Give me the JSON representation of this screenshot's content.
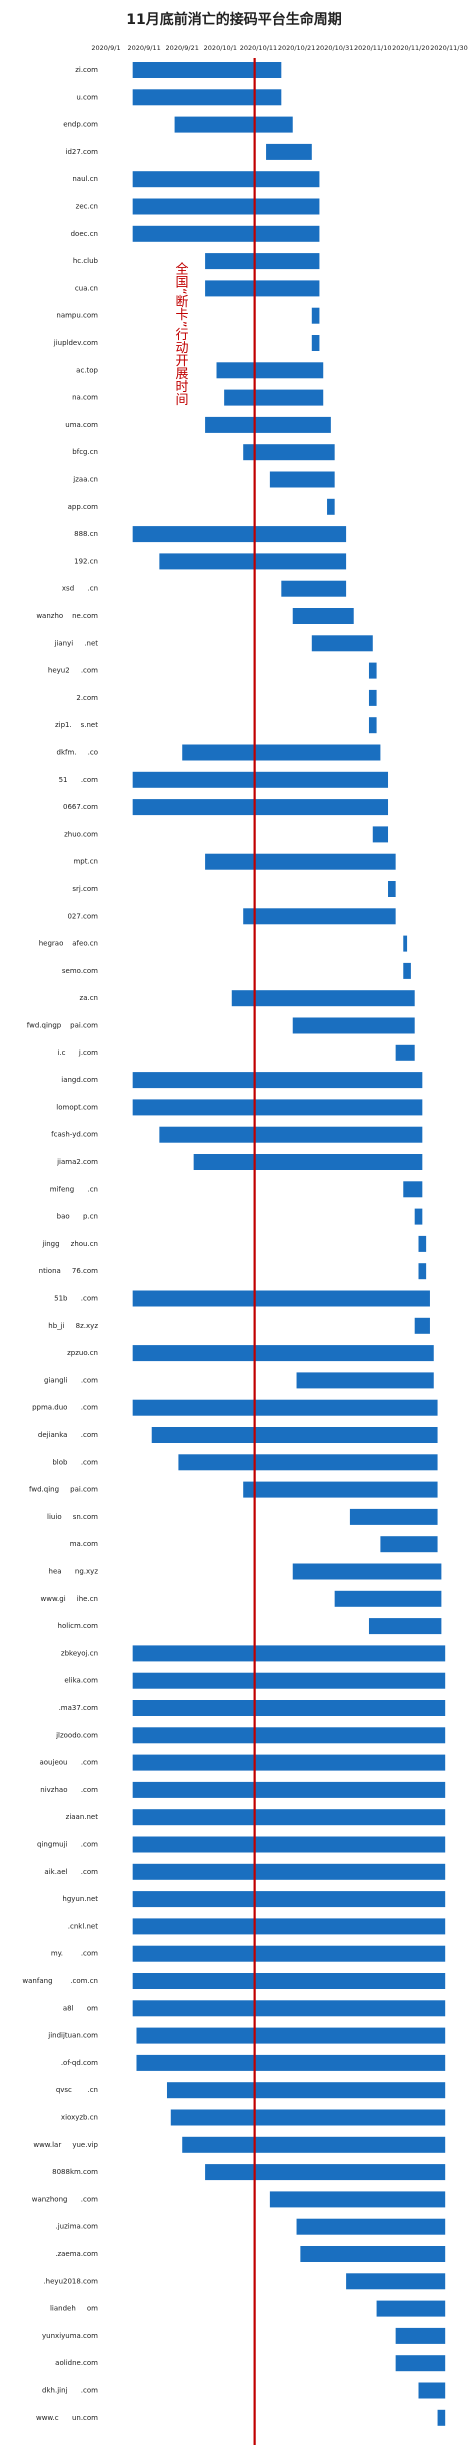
{
  "chart_data": {
    "type": "gantt",
    "title": "11月底前消亡的接码平台生命周期",
    "xlim": [
      "2020/9/1",
      "2020/11/30"
    ],
    "xticks": [
      "2020/9/1",
      "2020/9/11",
      "2020/9/21",
      "2020/10/1",
      "2020/10/11",
      "2020/10/21",
      "2020/10/31",
      "2020/11/10",
      "2020/11/20",
      "2020/11/30"
    ],
    "color": "#1a6fc0",
    "annotations": [
      {
        "text": "全国“断卡”行动开展时间",
        "x": "2020/10/10",
        "color": "#c00000"
      }
    ],
    "categories": [
      "zi.com",
      "u.com",
      "endp.com",
      "id27.com",
      "naul.cn",
      "zec.cn",
      "doec.cn",
      "hc.club",
      "cua.cn",
      "nampu.com",
      "jiupldev.com",
      "ac.top",
      "na.com",
      "uma.com",
      "bfcg.cn",
      "jzaa.cn",
      "app.com",
      "888.cn",
      "192.cn",
      "xsd      .cn",
      "wanzho    ne.com",
      "jianyi     .net",
      "heyu2     .com",
      "2.com",
      "zip1.    s.net",
      "dkfm.     .co",
      "51      .com",
      "0667.com",
      "zhuo.com",
      "mpt.cn",
      "srj.com",
      "027.com",
      "hegrao    afeo.cn",
      "semo.com",
      "za.cn",
      "fwd.qingp    pai.com",
      "i.c      j.com",
      "iangd.com",
      "lomopt.com",
      "fcash-yd.com",
      "jiama2.com",
      "mifeng      .cn",
      "bao      p.cn",
      "jingg     zhou.cn",
      "ntiona     76.com",
      "51b      .com",
      "hb_ji     8z.xyz",
      "zpzuo.cn",
      "giangli      .com",
      "ppma.duo      .com",
      "dejianka      .com",
      "blob      .com",
      "fwd.qing     pai.com",
      "liuio     sn.com",
      "ma.com",
      "hea      ng.xyz",
      "www.gi     ihe.cn",
      "holicm.com",
      "zbkeyoj.cn",
      "elika.com",
      ".ma37.com",
      "jlzoodo.com",
      "aoujeou      .com",
      "nivzhao      .com",
      "ziaan.net",
      "qingmuji      .com",
      "aik.ael      .com",
      "hgyun.net",
      ".cnkl.net",
      "my.        .com",
      "wanfang        .com.cn",
      "a8l      om",
      "jindijtuan.com",
      ".of-qd.com",
      "qvsc       .cn",
      "xioxyzb.cn",
      "www.lar     yue.vip",
      "8088km.com",
      "wanzhong      .com",
      ".juzima.com",
      ".zaema.com",
      ".heyu2018.com",
      "liandeh     om",
      "yunxiyuma.com",
      "aolidne.com",
      "dkh.jinj      .com",
      "www.c      un.com"
    ],
    "start": [
      "2020/9/8",
      "2020/9/8",
      "2020/9/19",
      "2020/10/13",
      "2020/9/8",
      "2020/9/8",
      "2020/9/8",
      "2020/9/27",
      "2020/9/27",
      "2020/10/25",
      "2020/10/25",
      "2020/9/30",
      "2020/10/2",
      "2020/9/27",
      "2020/10/7",
      "2020/10/14",
      "2020/10/29",
      "2020/9/8",
      "2020/9/15",
      "2020/10/17",
      "2020/10/20",
      "2020/10/25",
      "2020/11/9",
      "2020/11/9",
      "2020/11/9",
      "2020/9/21",
      "2020/9/8",
      "2020/9/8",
      "2020/11/10",
      "2020/9/27",
      "2020/11/14",
      "2020/10/7",
      "2020/11/18",
      "2020/11/18",
      "2020/10/4",
      "2020/10/20",
      "2020/11/16",
      "2020/9/8",
      "2020/9/8",
      "2020/9/15",
      "2020/9/24",
      "2020/11/18",
      "2020/11/21",
      "2020/11/22",
      "2020/11/22",
      "2020/9/8",
      "2020/11/21",
      "2020/9/8",
      "2020/10/21",
      "2020/9/8",
      "2020/9/13",
      "2020/9/20",
      "2020/10/7",
      "2020/11/4",
      "2020/11/12",
      "2020/10/20",
      "2020/10/31",
      "2020/11/9",
      "2020/9/8",
      "2020/9/8",
      "2020/9/8",
      "2020/9/8",
      "2020/9/8",
      "2020/9/8",
      "2020/9/8",
      "2020/9/8",
      "2020/9/8",
      "2020/9/8",
      "2020/9/8",
      "2020/9/8",
      "2020/9/8",
      "2020/9/8",
      "2020/9/9",
      "2020/9/9",
      "2020/9/17",
      "2020/9/18",
      "2020/9/21",
      "2020/9/27",
      "2020/10/14",
      "2020/10/21",
      "2020/10/22",
      "2020/11/3",
      "2020/11/11",
      "2020/11/16",
      "2020/11/16",
      "2020/11/22",
      "2020/11/27"
    ],
    "end": [
      "2020/10/17",
      "2020/10/17",
      "2020/10/20",
      "2020/10/25",
      "2020/10/27",
      "2020/10/27",
      "2020/10/27",
      "2020/10/27",
      "2020/10/27",
      "2020/10/27",
      "2020/10/27",
      "2020/10/28",
      "2020/10/28",
      "2020/10/30",
      "2020/10/31",
      "2020/10/31",
      "2020/10/31",
      "2020/11/3",
      "2020/11/3",
      "2020/11/3",
      "2020/11/5",
      "2020/11/10",
      "2020/11/11",
      "2020/11/11",
      "2020/11/11",
      "2020/11/12",
      "2020/11/14",
      "2020/11/14",
      "2020/11/14",
      "2020/11/16",
      "2020/11/16",
      "2020/11/16",
      "2020/11/19",
      "2020/11/20",
      "2020/11/21",
      "2020/11/21",
      "2020/11/21",
      "2020/11/23",
      "2020/11/23",
      "2020/11/23",
      "2020/11/23",
      "2020/11/23",
      "2020/11/23",
      "2020/11/24",
      "2020/11/24",
      "2020/11/25",
      "2020/11/25",
      "2020/11/26",
      "2020/11/26",
      "2020/11/27",
      "2020/11/27",
      "2020/11/27",
      "2020/11/27",
      "2020/11/27",
      "2020/11/27",
      "2020/11/28",
      "2020/11/28",
      "2020/11/28",
      "2020/11/29",
      "2020/11/29",
      "2020/11/29",
      "2020/11/29",
      "2020/11/29",
      "2020/11/29",
      "2020/11/29",
      "2020/11/29",
      "2020/11/29",
      "2020/11/29",
      "2020/11/29",
      "2020/11/29",
      "2020/11/29",
      "2020/11/29",
      "2020/11/29",
      "2020/11/29",
      "2020/11/29",
      "2020/11/29",
      "2020/11/29",
      "2020/11/29",
      "2020/11/29",
      "2020/11/29",
      "2020/11/29",
      "2020/11/29",
      "2020/11/29",
      "2020/11/29",
      "2020/11/29",
      "2020/11/29",
      "2020/11/29"
    ]
  }
}
